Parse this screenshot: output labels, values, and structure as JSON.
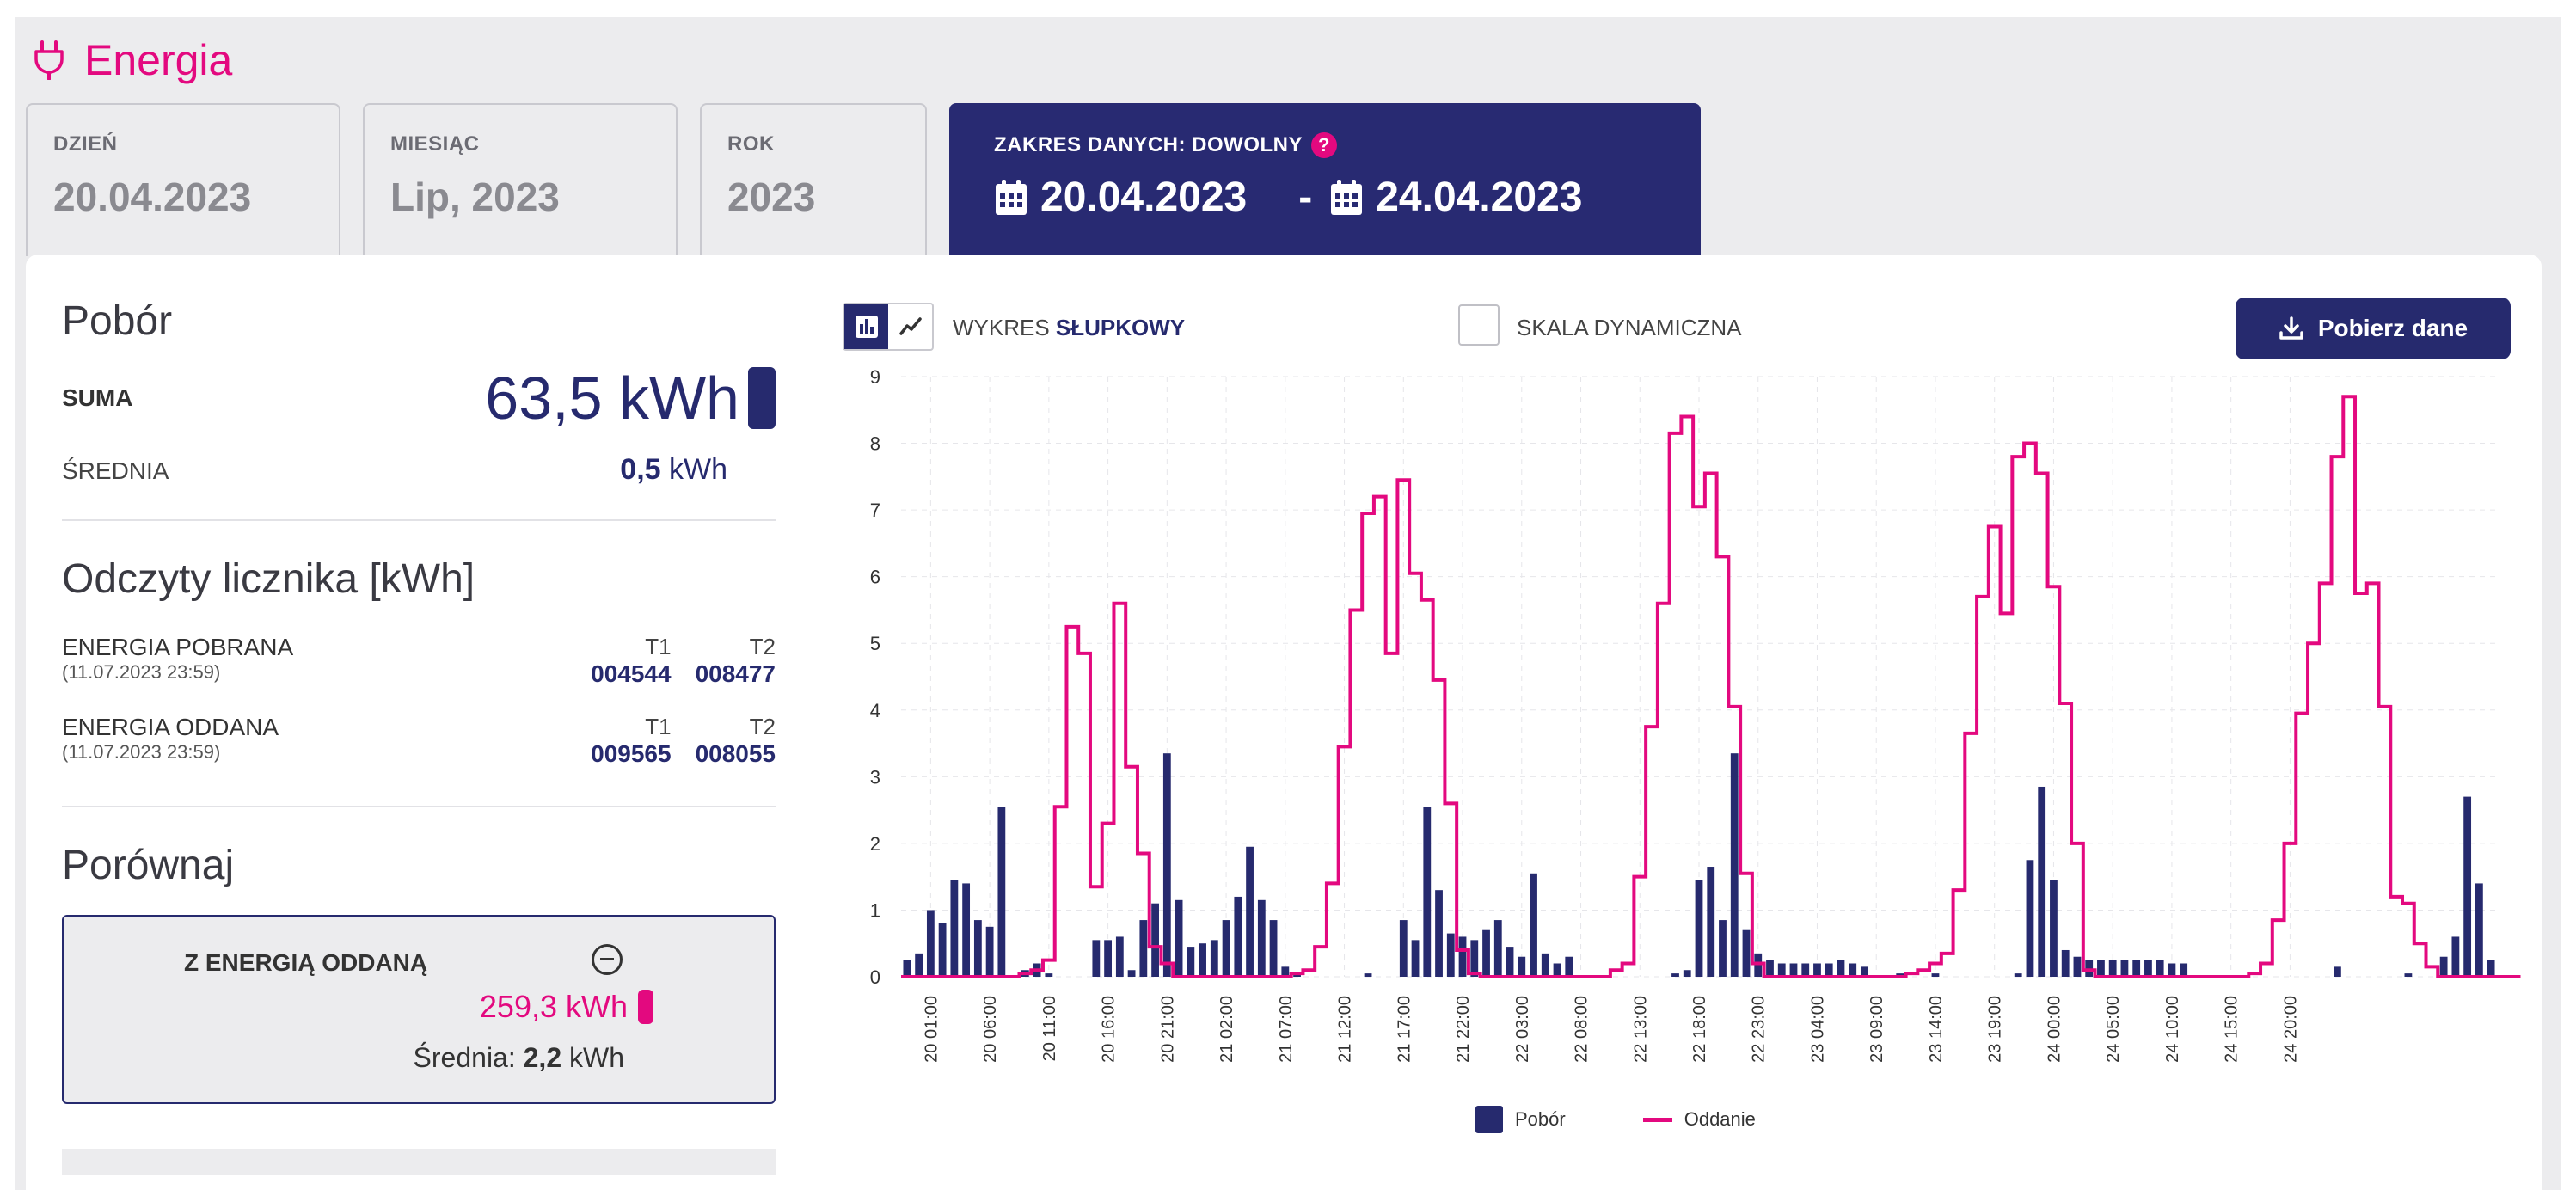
{
  "header": {
    "title": "Energia",
    "icon": "plug-icon"
  },
  "tabs": [
    {
      "label": "DZIEŃ",
      "value": "20.04.2023"
    },
    {
      "label": "MIESIĄC",
      "value": "Lip, 2023"
    },
    {
      "label": "ROK",
      "value": "2023"
    }
  ],
  "active_tab": {
    "label": "ZAKRES DANYCH: DOWOLNY",
    "from": "20.04.2023",
    "sep": "-",
    "to": "24.04.2023",
    "help_icon": "?"
  },
  "summary": {
    "title": "Pobór",
    "suma_label": "SUMA",
    "suma_value": "63,5 kWh",
    "avg_label": "ŚREDNIA",
    "avg_value": "0,5",
    "avg_unit": "kWh"
  },
  "meters": {
    "title": "Odczyty licznika [kWh]",
    "rows": [
      {
        "name": "ENERGIA POBRANA",
        "date": "(11.07.2023 23:59)",
        "t1_label": "T1",
        "t1": "004544",
        "t2_label": "T2",
        "t2": "008477"
      },
      {
        "name": "ENERGIA ODDANA",
        "date": "(11.07.2023 23:59)",
        "t1_label": "T1",
        "t1": "009565",
        "t2_label": "T2",
        "t2": "008055"
      }
    ]
  },
  "compare": {
    "title": "Porównaj",
    "box_title": "Z ENERGIĄ ODDANĄ",
    "value": "259,3 kWh",
    "avg_label": "Średnia:",
    "avg_value": "2,2",
    "avg_unit": "kWh"
  },
  "toolbar": {
    "chart_type_prefix": "WYKRES",
    "chart_type_value": "SŁUPKOWY",
    "dynamic_scale_label": "SKALA DYNAMICZNA",
    "dynamic_scale_checked": false,
    "download_label": "Pobierz dane"
  },
  "colors": {
    "navy": "#262a6e",
    "pink": "#e3097f",
    "header_bg": "#282a72"
  },
  "chart_data": {
    "type": "bar",
    "ylim": [
      0,
      9
    ],
    "yticks": [
      0,
      1,
      2,
      3,
      4,
      5,
      6,
      7,
      8,
      9
    ],
    "xtick_labels": [
      "20 01:00",
      "20 06:00",
      "20 11:00",
      "20 16:00",
      "20 21:00",
      "21 02:00",
      "21 07:00",
      "21 12:00",
      "21 17:00",
      "21 22:00",
      "22 03:00",
      "22 08:00",
      "22 13:00",
      "22 18:00",
      "22 23:00",
      "23 04:00",
      "23 09:00",
      "23 14:00",
      "23 19:00",
      "24 00:00",
      "24 05:00",
      "24 10:00",
      "24 15:00",
      "24 20:00"
    ],
    "series": [
      {
        "name": "Pobór",
        "values": [
          0.25,
          0.35,
          1.0,
          0.8,
          1.45,
          1.4,
          0.85,
          0.75,
          2.55,
          0,
          0.1,
          0.2,
          0.05,
          0,
          0,
          0,
          0.55,
          0.55,
          0.6,
          0.1,
          0.85,
          1.1,
          3.35,
          1.15,
          0.45,
          0.5,
          0.55,
          0.85,
          1.2,
          1.95,
          1.15,
          0.85,
          0.15,
          0.05,
          0,
          0,
          0,
          0,
          0,
          0.05,
          0,
          0,
          0.85,
          0.55,
          2.55,
          1.3,
          0.65,
          0.6,
          0.55,
          0.7,
          0.85,
          0.45,
          0.3,
          1.55,
          0.35,
          0.2,
          0.3,
          0,
          0,
          0,
          0,
          0,
          0,
          0,
          0,
          0.05,
          0.1,
          1.45,
          1.65,
          0.85,
          3.35,
          0.7,
          0.35,
          0.25,
          0.2,
          0.2,
          0.2,
          0.2,
          0.2,
          0.25,
          0.2,
          0.15,
          0,
          0,
          0.05,
          0,
          0,
          0.05,
          0,
          0,
          0,
          0,
          0,
          0,
          0.05,
          1.75,
          2.85,
          1.45,
          0.4,
          0.3,
          0.25,
          0.25,
          0.25,
          0.25,
          0.25,
          0.25,
          0.25,
          0.2,
          0.2,
          0,
          0,
          0,
          0,
          0,
          0,
          0,
          0,
          0,
          0,
          0,
          0,
          0.15,
          0,
          0,
          0,
          0,
          0,
          0.05,
          0,
          0,
          0.3,
          0.6,
          2.7,
          1.4,
          0.25
        ]
      },
      {
        "name": "Oddanie",
        "values": [
          0,
          0,
          0,
          0,
          0,
          0,
          0,
          0,
          0,
          0,
          0.05,
          0.1,
          0.25,
          2.55,
          5.25,
          4.85,
          1.35,
          2.3,
          5.6,
          3.15,
          1.85,
          0.45,
          0.2,
          0,
          0,
          0,
          0,
          0,
          0,
          0,
          0,
          0,
          0,
          0.05,
          0.1,
          0.45,
          1.4,
          3.45,
          5.5,
          6.95,
          7.2,
          4.85,
          7.45,
          6.05,
          5.65,
          4.45,
          2.6,
          0.4,
          0.05,
          0,
          0,
          0,
          0,
          0,
          0,
          0,
          0,
          0,
          0,
          0,
          0.1,
          0.2,
          1.5,
          3.75,
          5.6,
          8.15,
          8.4,
          7.05,
          7.55,
          6.3,
          4.05,
          1.55,
          0.2,
          0,
          0,
          0,
          0,
          0,
          0,
          0,
          0,
          0,
          0,
          0,
          0,
          0.05,
          0.1,
          0.2,
          0.35,
          1.3,
          3.65,
          5.7,
          6.75,
          5.45,
          7.8,
          8.0,
          7.55,
          5.85,
          4.1,
          2.0,
          0.1,
          0,
          0,
          0,
          0,
          0,
          0,
          0,
          0,
          0,
          0,
          0,
          0,
          0,
          0.05,
          0.2,
          0.85,
          2.0,
          3.95,
          5.0,
          5.9,
          7.8,
          8.7,
          5.75,
          5.9,
          4.05,
          1.2,
          1.1,
          0.5,
          0.15,
          0,
          0,
          0,
          0,
          0,
          0,
          0
        ]
      }
    ]
  }
}
